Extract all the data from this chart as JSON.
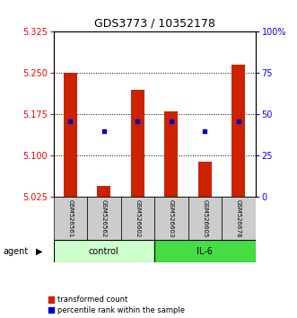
{
  "title": "GDS3773 / 10352178",
  "samples": [
    "GSM526561",
    "GSM526562",
    "GSM526602",
    "GSM526603",
    "GSM526605",
    "GSM526678"
  ],
  "groups": [
    "control",
    "control",
    "control",
    "IL-6",
    "IL-6",
    "IL-6"
  ],
  "transformed_counts": [
    5.25,
    5.045,
    5.22,
    5.18,
    5.09,
    5.265
  ],
  "percentile_ranks": [
    46,
    40,
    46,
    46,
    40,
    46
  ],
  "ylim_left": [
    5.025,
    5.325
  ],
  "ylim_right": [
    0,
    100
  ],
  "yticks_left": [
    5.025,
    5.1,
    5.175,
    5.25,
    5.325
  ],
  "yticks_right": [
    0,
    25,
    50,
    75,
    100
  ],
  "bar_color": "#cc2200",
  "dot_color": "#0000cc",
  "bar_bottom": 5.025,
  "control_color": "#ccffcc",
  "il6_color": "#44dd44",
  "group_label_control": "control",
  "group_label_il6": "IL-6",
  "agent_label": "agent",
  "legend_bar": "transformed count",
  "legend_dot": "percentile rank within the sample",
  "title_fontsize": 9,
  "tick_fontsize": 7,
  "sample_fontsize": 5,
  "group_fontsize": 7,
  "legend_fontsize": 6,
  "agent_fontsize": 7,
  "grid_lines": [
    5.1,
    5.175,
    5.25
  ],
  "bar_width": 0.4
}
